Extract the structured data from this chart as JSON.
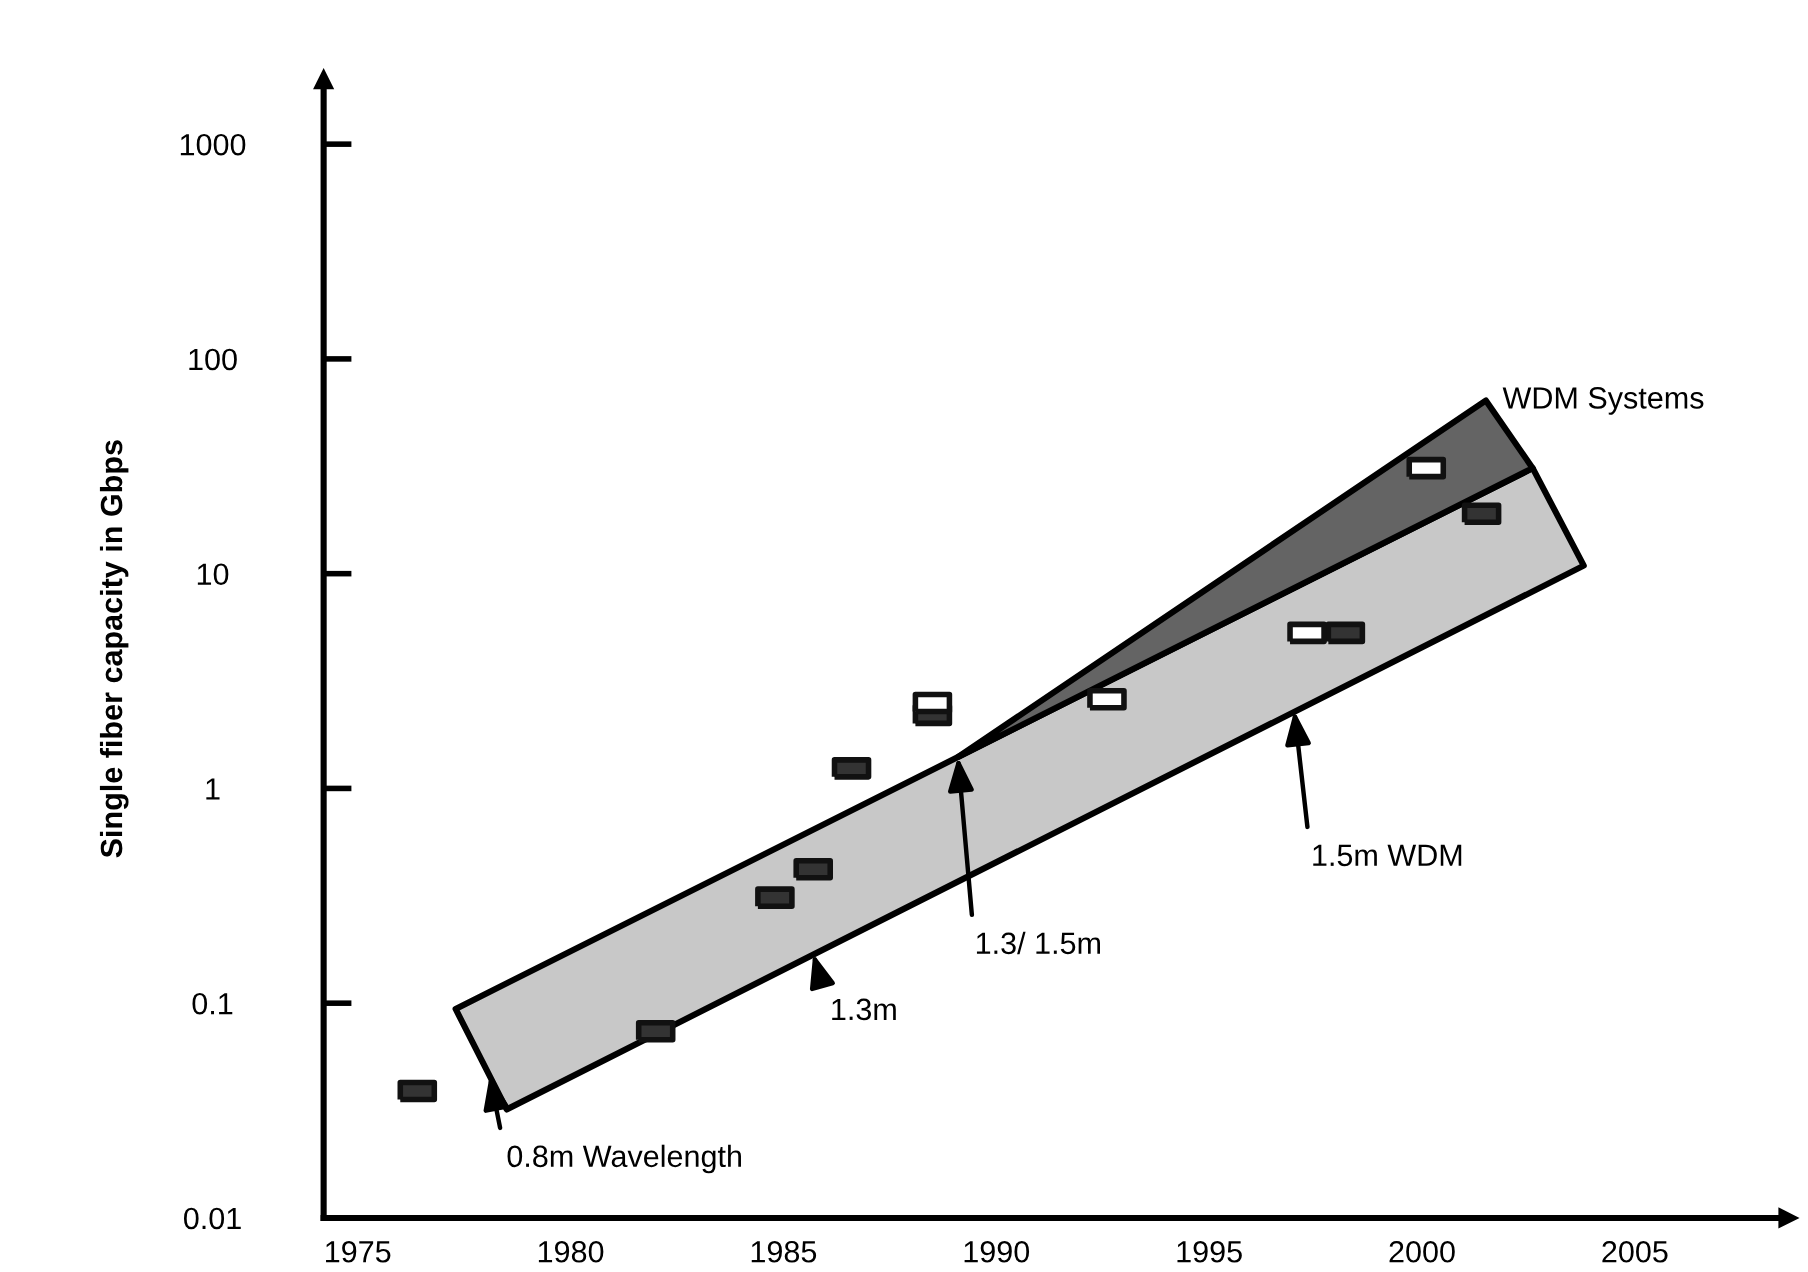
{
  "chart_data": {
    "type": "scatter",
    "ylabel": "Single fiber capacity in Gbps",
    "log": "y",
    "xlim": [
      1974.2,
      2008.6
    ],
    "xticks": [
      1975,
      1980,
      1985,
      1990,
      1995,
      2000,
      2005
    ],
    "ylim": [
      0.01,
      2000
    ],
    "yticks": [
      0.01,
      0.1,
      1,
      10,
      100,
      1000
    ],
    "grid": false,
    "legend": false,
    "series": [
      {
        "type": "area",
        "color": "#c8c8c8",
        "x": [
          1977.3,
          1989.1,
          2002.6,
          2003.8,
          1978.5
        ],
        "values": [
          0.094,
          1.4,
          31,
          10.9,
          0.032
        ]
      },
      {
        "type": "area",
        "name": "WDM Systems",
        "color": "#646464",
        "x": [
          1989.1,
          2001.5,
          2002.6
        ],
        "values": [
          1.4,
          64,
          31
        ]
      },
      {
        "marker": "square",
        "color": "#333333",
        "x": [
          1976.4,
          1982.0,
          1984.8,
          1985.7,
          1986.6,
          1988.5,
          1998.2,
          2001.4
        ],
        "values": [
          0.039,
          0.074,
          0.31,
          0.42,
          1.24,
          2.2,
          5.3,
          19
        ]
      },
      {
        "marker": "square",
        "color": "#ffffff",
        "x": [
          1988.5,
          1992.6,
          1997.3,
          2000.1
        ],
        "values": [
          2.5,
          2.6,
          5.3,
          31
        ]
      }
    ],
    "annotations": [
      {
        "text": "0.8m Wavelength",
        "x": 1978.1,
        "y": 0.046
      },
      {
        "text": "1.3m",
        "x": 1985.7,
        "y": 0.17
      },
      {
        "text": "1.3/ 1.5m",
        "x": 1989.1,
        "y": 1.4
      },
      {
        "text": "1.5m WDM",
        "x": 1997.0,
        "y": 2.3
      }
    ]
  }
}
